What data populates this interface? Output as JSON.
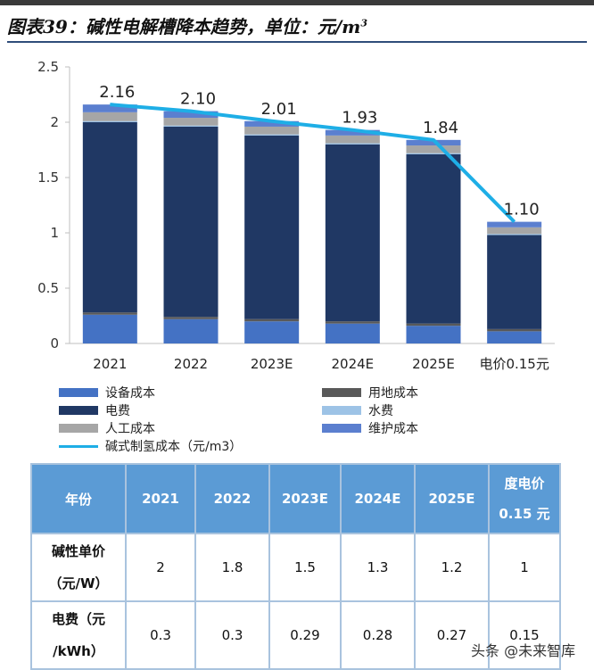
{
  "title": "图表39：碱性电解槽降本趋势，单位：元/m",
  "title_sup": "3",
  "chart_data": {
    "type": "bar",
    "stacked": true,
    "categories": [
      "2021",
      "2022",
      "2023E",
      "2024E",
      "2025E",
      "电价0.15元"
    ],
    "ylim": [
      0,
      2.5
    ],
    "yticks": [
      "0",
      "0.5",
      "1",
      "1.5",
      "2",
      "2.5"
    ],
    "series": [
      {
        "name": "设备成本",
        "color": "#4472c4",
        "values": [
          0.26,
          0.22,
          0.2,
          0.18,
          0.16,
          0.11
        ]
      },
      {
        "name": "用地成本",
        "color": "#595959",
        "values": [
          0.02,
          0.02,
          0.02,
          0.02,
          0.02,
          0.02
        ]
      },
      {
        "name": "电费",
        "color": "#203864",
        "values": [
          1.72,
          1.72,
          1.66,
          1.6,
          1.53,
          0.85
        ]
      },
      {
        "name": "水费",
        "color": "#9dc3e6",
        "values": [
          0.01,
          0.01,
          0.01,
          0.01,
          0.01,
          0.01
        ]
      },
      {
        "name": "人工成本",
        "color": "#a6a6a6",
        "values": [
          0.08,
          0.07,
          0.07,
          0.07,
          0.07,
          0.06
        ]
      },
      {
        "name": "维护成本",
        "color": "#5b7fcf",
        "values": [
          0.07,
          0.06,
          0.05,
          0.05,
          0.05,
          0.05
        ]
      }
    ],
    "line": {
      "name": "碱式制氢成本（元/m3）",
      "color": "#1eaee6",
      "values": [
        2.16,
        2.1,
        2.01,
        1.93,
        1.84,
        1.1
      ]
    },
    "data_labels": [
      "2.16",
      "2.10",
      "2.01",
      "1.93",
      "1.84",
      "1.10"
    ]
  },
  "legend": [
    {
      "label": "设备成本",
      "color": "#4472c4"
    },
    {
      "label": "用地成本",
      "color": "#595959"
    },
    {
      "label": "电费",
      "color": "#203864"
    },
    {
      "label": "水费",
      "color": "#9dc3e6"
    },
    {
      "label": "人工成本",
      "color": "#a6a6a6"
    },
    {
      "label": "维护成本",
      "color": "#5b7fcf"
    },
    {
      "label": "碱式制氢成本（元/m3）",
      "color": "#1eaee6"
    }
  ],
  "table": {
    "headers": [
      "年份",
      "2021",
      "2022",
      "2023E",
      "2024E",
      "2025E",
      "度电价",
      "0.15 元"
    ],
    "row1_label_a": "碱性单价",
    "row1_label_b": "（元/W）",
    "row1": [
      "2",
      "1.8",
      "1.5",
      "1.3",
      "1.2",
      "1"
    ],
    "row2_label_a": "电费（元",
    "row2_label_b": "/kWh）",
    "row2": [
      "0.3",
      "0.3",
      "0.29",
      "0.28",
      "0.27",
      "0.15"
    ]
  },
  "watermark": "头条 @未来智库"
}
